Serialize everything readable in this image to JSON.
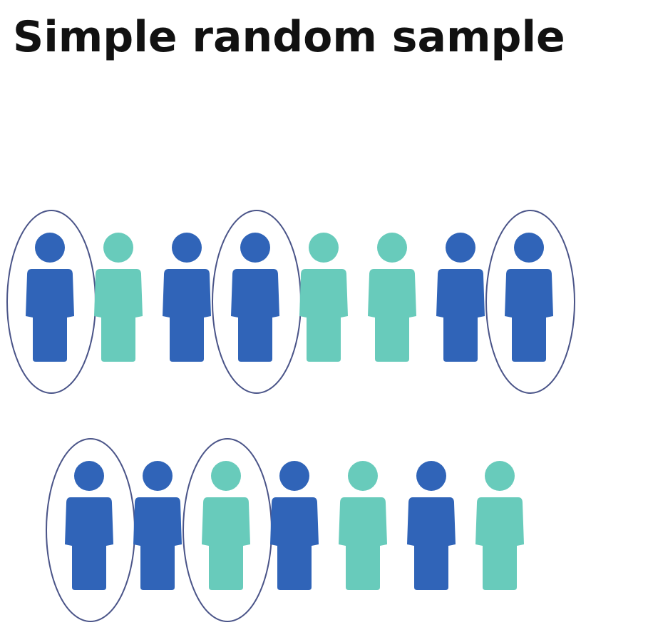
{
  "title": "Simple random sample",
  "colors": {
    "group_a": "#3064b8",
    "group_b": "#68cbbb",
    "selection_outline": "#4a5488",
    "title_text": "#111111"
  },
  "rows": [
    {
      "people": [
        {
          "group": "a",
          "selected": true
        },
        {
          "group": "b",
          "selected": false
        },
        {
          "group": "a",
          "selected": false
        },
        {
          "group": "a",
          "selected": true
        },
        {
          "group": "b",
          "selected": false
        },
        {
          "group": "b",
          "selected": false
        },
        {
          "group": "a",
          "selected": false
        },
        {
          "group": "a",
          "selected": true
        }
      ]
    },
    {
      "people": [
        {
          "group": "a",
          "selected": true
        },
        {
          "group": "a",
          "selected": false
        },
        {
          "group": "b",
          "selected": true
        },
        {
          "group": "a",
          "selected": false
        },
        {
          "group": "b",
          "selected": false
        },
        {
          "group": "a",
          "selected": false
        },
        {
          "group": "b",
          "selected": false
        }
      ]
    }
  ]
}
